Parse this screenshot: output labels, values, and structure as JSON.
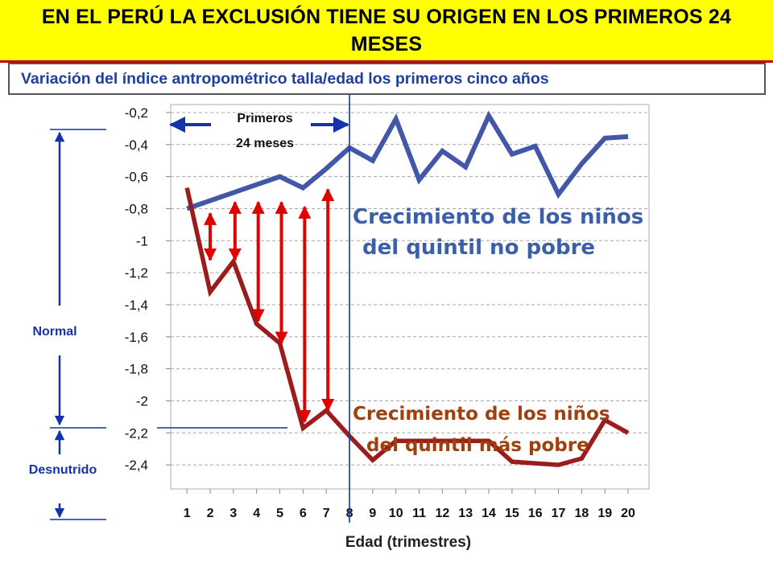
{
  "title": "EN EL PERÚ LA EXCLUSIÓN TIENE SU ORIGEN EN LOS PRIMEROS 24 MESES",
  "subtitle": "Variación del índice antropométrico talla/edad los primeros cinco años",
  "chart_data": {
    "type": "line",
    "xlabel": "Edad (trimestres)",
    "ylabel": "",
    "x": [
      1,
      2,
      3,
      4,
      5,
      6,
      7,
      8,
      9,
      10,
      11,
      12,
      13,
      14,
      15,
      16,
      17,
      18,
      19,
      20
    ],
    "y_ticks": [
      -0.2,
      -0.4,
      -0.6,
      -0.8,
      -1,
      -1.2,
      -1.4,
      -1.6,
      -1.8,
      -2,
      -2.2,
      -2.4
    ],
    "y_tick_labels": [
      "-0,2",
      "-0,4",
      "-0,6",
      "-0,8",
      "-1",
      "-1,2",
      "-1,4",
      "-1,6",
      "-1,8",
      "-2",
      "-2,2",
      "-2,4"
    ],
    "ylim": [
      -2.55,
      -0.15
    ],
    "xlim": [
      0.3,
      20.9
    ],
    "grid": true,
    "series": [
      {
        "name": "Crecimiento de los niños del quintil no pobre",
        "label_lines": [
          "Crecimiento de los niños",
          "del quintil no pobre"
        ],
        "color": "#4257a8",
        "x": [
          1,
          4,
          5,
          6,
          7,
          8,
          9,
          10,
          11,
          12,
          13,
          14,
          15,
          16,
          17,
          18,
          19,
          20
        ],
        "values": [
          -0.8,
          -0.65,
          -0.6,
          -0.67,
          -0.55,
          -0.42,
          -0.5,
          -0.24,
          -0.62,
          -0.44,
          -0.54,
          -0.22,
          -0.46,
          -0.41,
          -0.71,
          -0.52,
          -0.36,
          -0.35
        ]
      },
      {
        "name": "Crecimiento de los niños del quintil más pobre",
        "label_lines": [
          "Crecimiento de los niños",
          "del quintil más pobre"
        ],
        "color": "#9b1c1c",
        "x": [
          1,
          2,
          3,
          4,
          5,
          6,
          7,
          8,
          9,
          10,
          11,
          12,
          13,
          14,
          15,
          16,
          17,
          18,
          19,
          20
        ],
        "values": [
          -0.67,
          -1.32,
          -1.13,
          -1.52,
          -1.64,
          -2.17,
          -2.06,
          -2.22,
          -2.37,
          -2.25,
          -2.25,
          -2.25,
          -2.25,
          -2.25,
          -2.38,
          -2.39,
          -2.4,
          -2.36,
          -2.12,
          -2.2
        ]
      }
    ],
    "gap_arrows": [
      {
        "x": 2,
        "top": -0.83,
        "bottom": -1.12
      },
      {
        "x": 3,
        "top": -0.76,
        "bottom": -1.12
      },
      {
        "x": 4,
        "top": -0.76,
        "bottom": -1.5
      },
      {
        "x": 5,
        "top": -0.76,
        "bottom": -1.64
      },
      {
        "x": 6,
        "top": -0.79,
        "bottom": -2.13
      },
      {
        "x": 7,
        "top": -0.68,
        "bottom": -2.06
      }
    ],
    "divider_x": 8,
    "annotation_primeros": [
      "Primeros",
      "24 meses"
    ],
    "side_labels": {
      "normal": "Normal",
      "desnutrido": "Desnutrido"
    },
    "accent_red": "#e00000",
    "axis_blue": "#1533a8"
  }
}
